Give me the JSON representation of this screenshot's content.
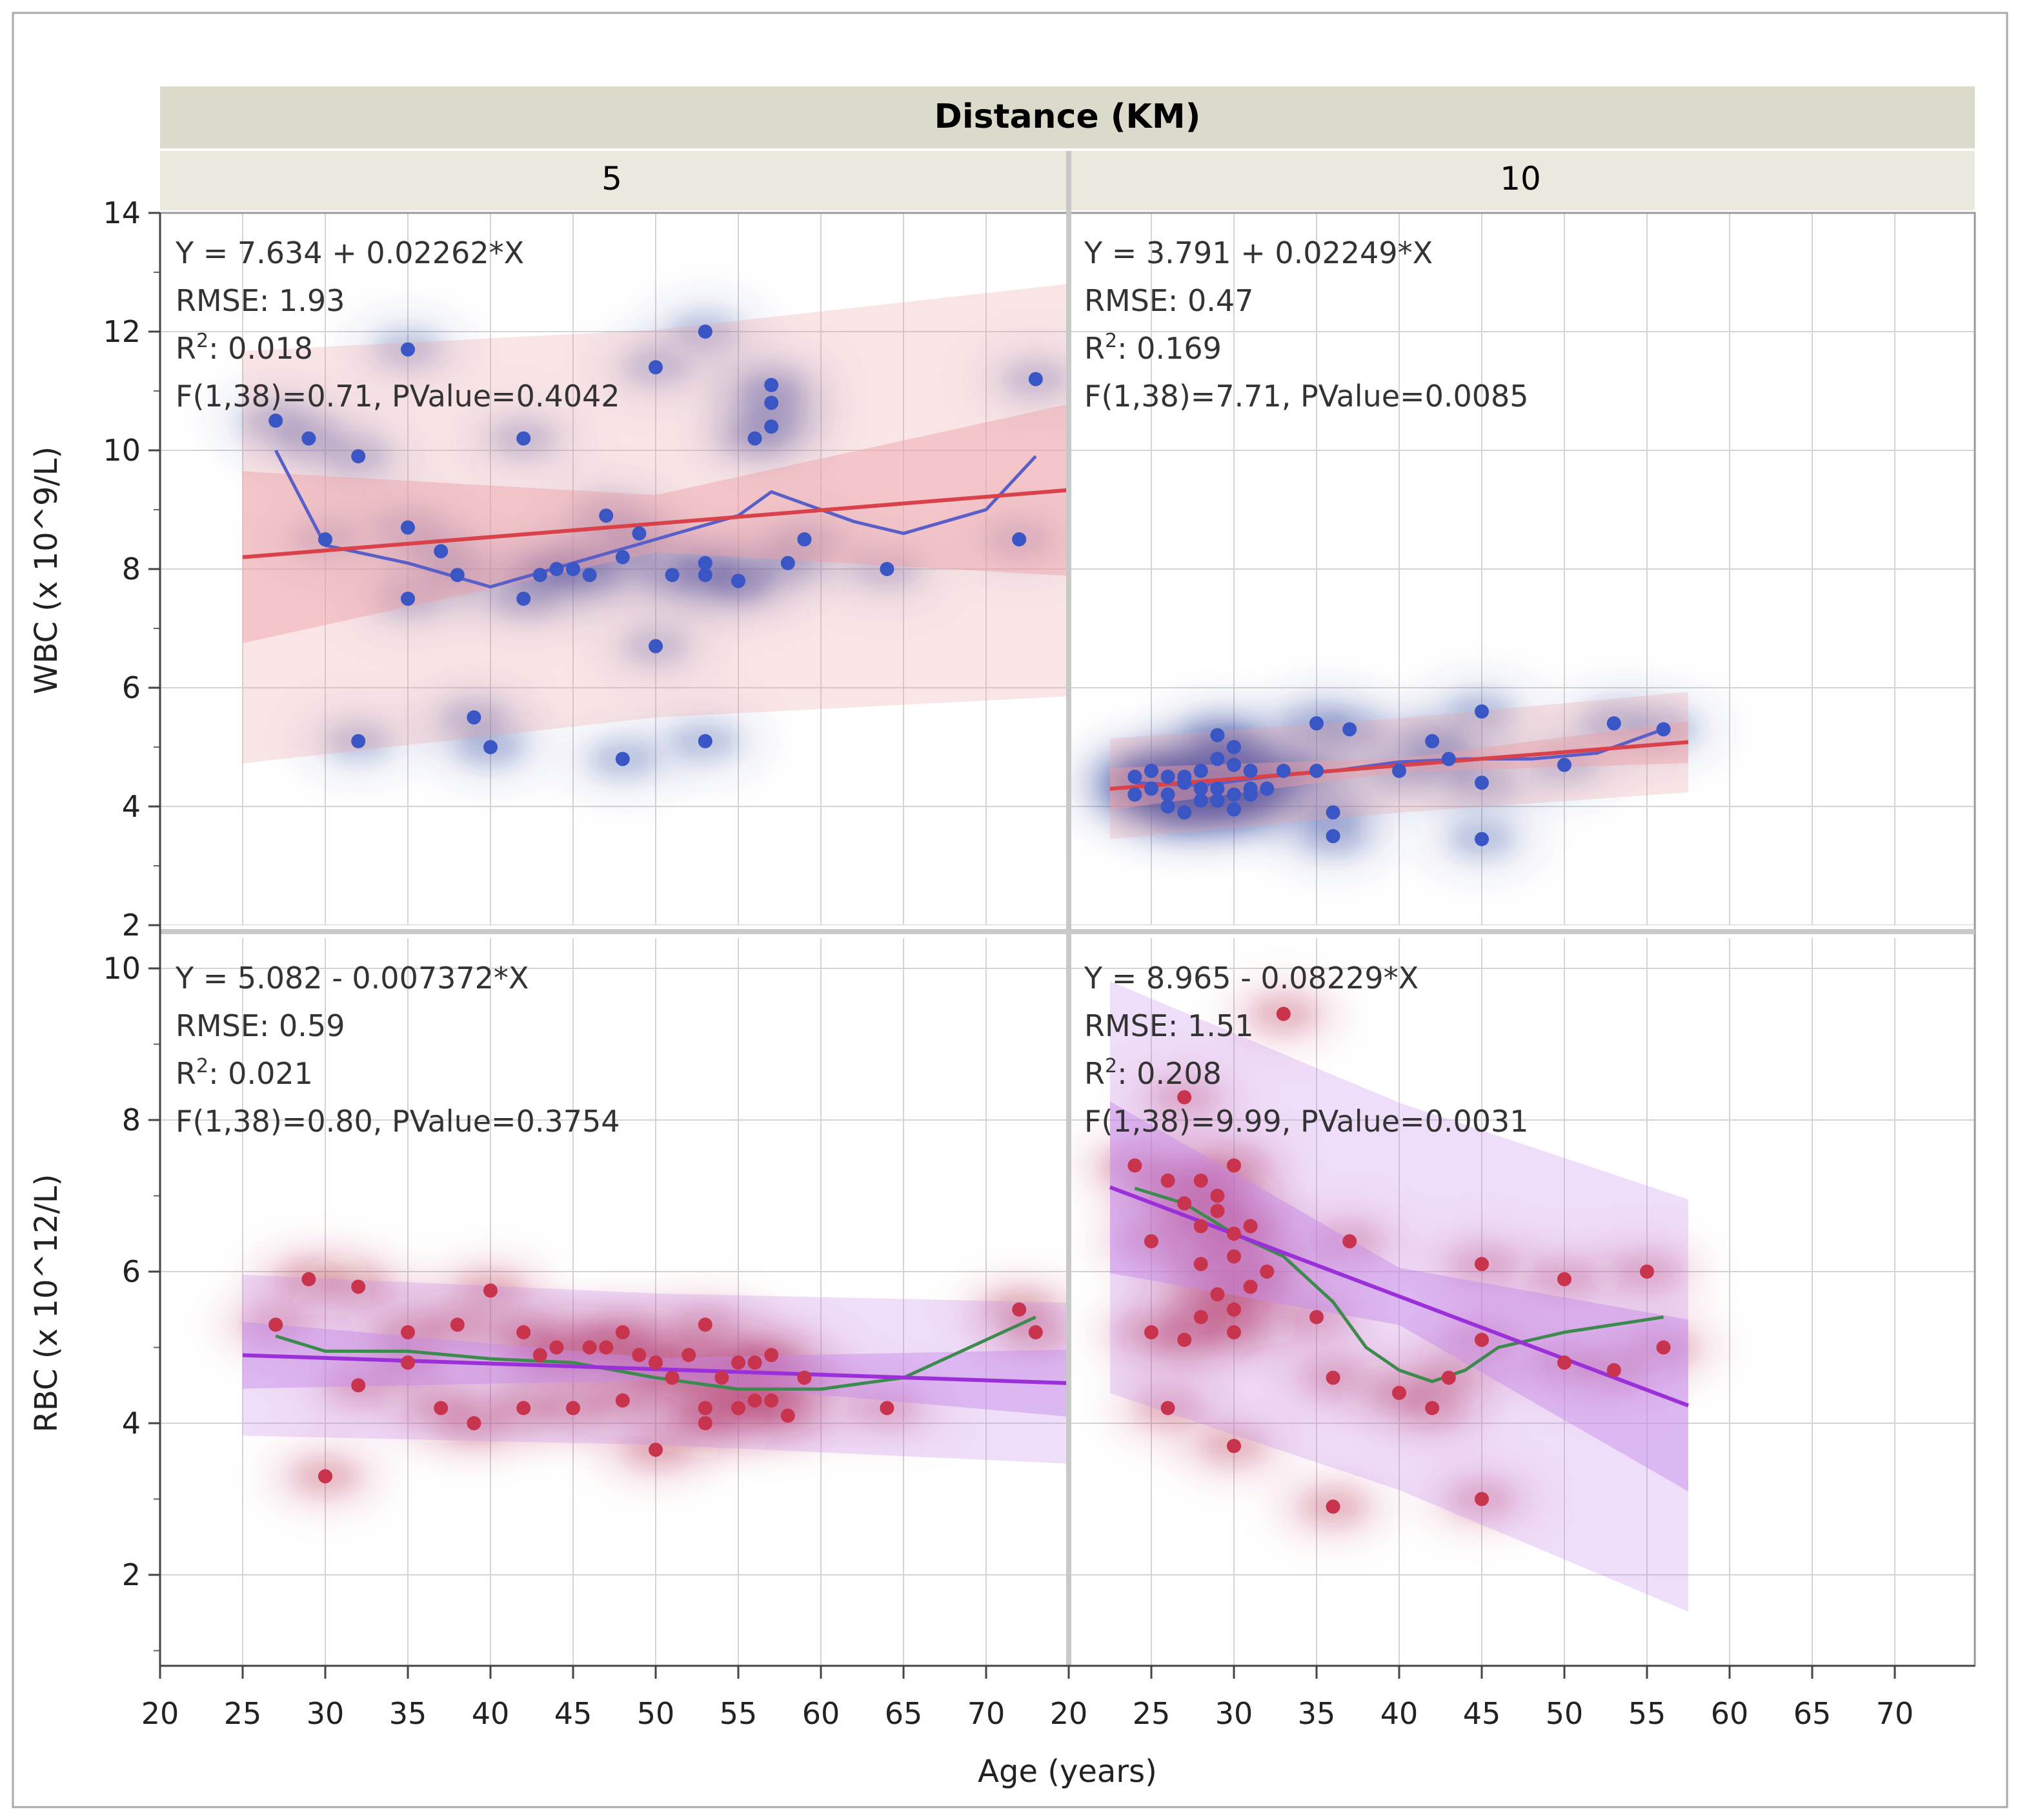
{
  "header": {
    "title": "Distance (KM)",
    "columns": [
      "5",
      "10"
    ]
  },
  "axes": {
    "x_title": "Age (years)",
    "y_titles": [
      "WBC (x 10^9/L)",
      "RBC (x 10^12/L)"
    ],
    "x_ticks": [
      "20",
      "25",
      "30",
      "35",
      "40",
      "45",
      "50",
      "55",
      "60",
      "65",
      "70"
    ],
    "xlim": [
      20,
      75
    ],
    "wbc_ylim": [
      2,
      14
    ],
    "wbc_ticks": [
      "2",
      "4",
      "6",
      "8",
      "10",
      "12",
      "14"
    ],
    "rbc_ylim": [
      0.8,
      10.4
    ],
    "rbc_ticks": [
      "2",
      "4",
      "6",
      "8",
      "10"
    ]
  },
  "colors": {
    "wbc_point": "#3a55c4",
    "wbc_density": "#2f3f9f",
    "wbc_fit": "#d9414b",
    "wbc_band": "#eda0a6",
    "rbc_point": "#c8334d",
    "rbc_density": "#b0243e",
    "rbc_fit": "#9b30d9",
    "rbc_band": "#c68ae8",
    "wbc_smooth": "#5a5fc8",
    "rbc_smooth": "#3d8a4f"
  },
  "chart_data": [
    {
      "type": "scatter",
      "panel": "WBC, Distance 5 KM",
      "xlabel": "Age (years)",
      "ylabel": "WBC (x 10^9/L)",
      "stats": {
        "equation": "Y = 7.634 + 0.02262*X",
        "rmse": "RMSE: 1.93",
        "r2": "0.018",
        "f_test": "F(1,38)=0.71, PValue=0.4042"
      },
      "fit": {
        "intercept": 7.634,
        "slope": 0.02262,
        "x_range": [
          25,
          75
        ]
      },
      "points": [
        [
          27,
          10.5
        ],
        [
          29,
          10.2
        ],
        [
          32,
          9.9
        ],
        [
          35,
          11.7
        ],
        [
          35,
          8.7
        ],
        [
          35,
          7.5
        ],
        [
          32,
          5.1
        ],
        [
          39,
          5.5
        ],
        [
          40,
          5.0
        ],
        [
          37,
          8.3
        ],
        [
          38,
          7.9
        ],
        [
          42,
          10.2
        ],
        [
          42,
          7.5
        ],
        [
          43,
          7.9
        ],
        [
          45,
          8.0
        ],
        [
          47,
          8.9
        ],
        [
          48,
          8.2
        ],
        [
          48,
          4.8
        ],
        [
          49,
          8.6
        ],
        [
          50,
          11.4
        ],
        [
          50,
          6.7
        ],
        [
          53,
          12.0
        ],
        [
          53,
          8.1
        ],
        [
          53,
          7.9
        ],
        [
          53,
          5.1
        ],
        [
          55,
          7.8
        ],
        [
          56,
          10.2
        ],
        [
          57,
          11.1
        ],
        [
          57,
          10.8
        ],
        [
          57,
          10.4
        ],
        [
          58,
          8.1
        ],
        [
          59,
          8.5
        ],
        [
          64,
          8.0
        ],
        [
          72,
          8.5
        ],
        [
          73,
          11.2
        ],
        [
          30,
          8.5
        ],
        [
          44,
          8.0
        ],
        [
          51,
          7.9
        ],
        [
          55,
          7.8
        ],
        [
          46,
          7.9
        ]
      ],
      "smooth": [
        [
          27,
          10.0
        ],
        [
          30,
          8.4
        ],
        [
          35,
          8.1
        ],
        [
          40,
          7.7
        ],
        [
          45,
          8.1
        ],
        [
          50,
          8.5
        ],
        [
          55,
          8.9
        ],
        [
          57,
          9.3
        ],
        [
          62,
          8.8
        ],
        [
          65,
          8.6
        ],
        [
          70,
          9.0
        ],
        [
          73,
          9.9
        ]
      ]
    },
    {
      "type": "scatter",
      "panel": "WBC, Distance 10 KM",
      "xlabel": "Age (years)",
      "ylabel": "WBC (x 10^9/L)",
      "stats": {
        "equation": "Y = 3.791 + 0.02249*X",
        "rmse": "RMSE: 0.47",
        "r2": "0.169",
        "f_test": "F(1,38)=7.71, PValue=0.0085"
      },
      "fit": {
        "intercept": 3.791,
        "slope": 0.02249,
        "x_range": [
          22.5,
          57.5
        ]
      },
      "points": [
        [
          24,
          4.5
        ],
        [
          25,
          4.6
        ],
        [
          25,
          4.3
        ],
        [
          26,
          4.2
        ],
        [
          26,
          4.0
        ],
        [
          27,
          4.5
        ],
        [
          27,
          3.9
        ],
        [
          28,
          4.6
        ],
        [
          28,
          4.1
        ],
        [
          29,
          5.2
        ],
        [
          29,
          4.8
        ],
        [
          29,
          4.3
        ],
        [
          30,
          5.0
        ],
        [
          30,
          4.7
        ],
        [
          30,
          4.2
        ],
        [
          30,
          3.95
        ],
        [
          31,
          4.3
        ],
        [
          31,
          4.6
        ],
        [
          33,
          4.6
        ],
        [
          35,
          5.4
        ],
        [
          36,
          3.9
        ],
        [
          36,
          3.5
        ],
        [
          37,
          5.3
        ],
        [
          40,
          4.6
        ],
        [
          42,
          5.1
        ],
        [
          43,
          4.8
        ],
        [
          45,
          5.6
        ],
        [
          45,
          4.4
        ],
        [
          45,
          3.45
        ],
        [
          50,
          4.7
        ],
        [
          53,
          5.4
        ],
        [
          56,
          5.3
        ],
        [
          24,
          4.2
        ],
        [
          27,
          4.4
        ],
        [
          28,
          4.3
        ],
        [
          29,
          4.1
        ],
        [
          31,
          4.2
        ],
        [
          32,
          4.3
        ],
        [
          26,
          4.5
        ],
        [
          35,
          4.6
        ]
      ],
      "smooth": [
        [
          24,
          4.4
        ],
        [
          28,
          4.35
        ],
        [
          32,
          4.5
        ],
        [
          36,
          4.6
        ],
        [
          40,
          4.75
        ],
        [
          44,
          4.8
        ],
        [
          48,
          4.8
        ],
        [
          52,
          4.9
        ],
        [
          56,
          5.3
        ]
      ]
    },
    {
      "type": "scatter",
      "panel": "RBC, Distance 5 KM",
      "xlabel": "Age (years)",
      "ylabel": "RBC (x 10^12/L)",
      "stats": {
        "equation": "Y = 5.082 - 0.007372*X",
        "rmse": "RMSE: 0.59",
        "r2": "0.021",
        "f_test": "F(1,38)=0.80, PValue=0.3754"
      },
      "fit": {
        "intercept": 5.082,
        "slope": -0.007372,
        "x_range": [
          25,
          75
        ]
      },
      "points": [
        [
          27,
          5.3
        ],
        [
          29,
          5.9
        ],
        [
          30,
          3.3
        ],
        [
          32,
          5.8
        ],
        [
          32,
          4.5
        ],
        [
          35,
          5.2
        ],
        [
          35,
          4.8
        ],
        [
          37,
          4.2
        ],
        [
          38,
          5.3
        ],
        [
          39,
          4.0
        ],
        [
          40,
          5.75
        ],
        [
          42,
          5.2
        ],
        [
          42,
          4.2
        ],
        [
          43,
          4.9
        ],
        [
          45,
          4.2
        ],
        [
          47,
          5.0
        ],
        [
          48,
          5.2
        ],
        [
          48,
          4.3
        ],
        [
          49,
          4.9
        ],
        [
          50,
          3.65
        ],
        [
          50,
          4.8
        ],
        [
          52,
          4.9
        ],
        [
          53,
          5.3
        ],
        [
          53,
          4.2
        ],
        [
          53,
          4.0
        ],
        [
          54,
          4.6
        ],
        [
          55,
          4.8
        ],
        [
          55,
          4.2
        ],
        [
          56,
          4.3
        ],
        [
          56,
          4.8
        ],
        [
          57,
          4.3
        ],
        [
          57,
          4.9
        ],
        [
          58,
          4.1
        ],
        [
          59,
          4.6
        ],
        [
          64,
          4.2
        ],
        [
          72,
          5.5
        ],
        [
          73,
          5.2
        ],
        [
          44,
          5.0
        ],
        [
          46,
          5.0
        ],
        [
          51,
          4.6
        ]
      ],
      "smooth": [
        [
          27,
          5.15
        ],
        [
          30,
          4.95
        ],
        [
          35,
          4.95
        ],
        [
          40,
          4.85
        ],
        [
          45,
          4.8
        ],
        [
          50,
          4.6
        ],
        [
          55,
          4.45
        ],
        [
          60,
          4.45
        ],
        [
          65,
          4.6
        ],
        [
          70,
          5.1
        ],
        [
          73,
          5.4
        ]
      ]
    },
    {
      "type": "scatter",
      "panel": "RBC, Distance 10 KM",
      "xlabel": "Age (years)",
      "ylabel": "RBC (x 10^12/L)",
      "stats": {
        "equation": "Y = 8.965 - 0.08229*X",
        "rmse": "RMSE: 1.51",
        "r2": "0.208",
        "f_test": "F(1,38)=9.99, PValue=0.0031"
      },
      "fit": {
        "intercept": 8.965,
        "slope": -0.08229,
        "x_range": [
          22.5,
          57.5
        ]
      },
      "points": [
        [
          24,
          7.4
        ],
        [
          25,
          6.4
        ],
        [
          25,
          5.2
        ],
        [
          26,
          4.2
        ],
        [
          27,
          5.1
        ],
        [
          27,
          8.3
        ],
        [
          28,
          7.2
        ],
        [
          28,
          6.1
        ],
        [
          29,
          5.7
        ],
        [
          29,
          6.8
        ],
        [
          30,
          5.2
        ],
        [
          30,
          5.5
        ],
        [
          30,
          6.5
        ],
        [
          30,
          7.4
        ],
        [
          30,
          3.7
        ],
        [
          31,
          6.6
        ],
        [
          33,
          9.4
        ],
        [
          35,
          5.4
        ],
        [
          36,
          4.6
        ],
        [
          36,
          2.9
        ],
        [
          37,
          6.4
        ],
        [
          40,
          4.4
        ],
        [
          42,
          4.2
        ],
        [
          43,
          4.6
        ],
        [
          45,
          6.1
        ],
        [
          45,
          5.1
        ],
        [
          45,
          3.0
        ],
        [
          50,
          5.9
        ],
        [
          50,
          4.8
        ],
        [
          53,
          4.7
        ],
        [
          55,
          6.0
        ],
        [
          56,
          5.0
        ],
        [
          28,
          6.6
        ],
        [
          29,
          7.0
        ],
        [
          31,
          5.8
        ],
        [
          26,
          7.2
        ],
        [
          27,
          6.9
        ],
        [
          28,
          5.4
        ],
        [
          30,
          6.2
        ],
        [
          32,
          6.0
        ]
      ],
      "smooth": [
        [
          24,
          7.1
        ],
        [
          27,
          6.9
        ],
        [
          30,
          6.5
        ],
        [
          33,
          6.2
        ],
        [
          36,
          5.6
        ],
        [
          38,
          5.0
        ],
        [
          40,
          4.7
        ],
        [
          42,
          4.55
        ],
        [
          44,
          4.7
        ],
        [
          46,
          5.0
        ],
        [
          50,
          5.2
        ],
        [
          53,
          5.3
        ],
        [
          56,
          5.4
        ]
      ]
    }
  ]
}
